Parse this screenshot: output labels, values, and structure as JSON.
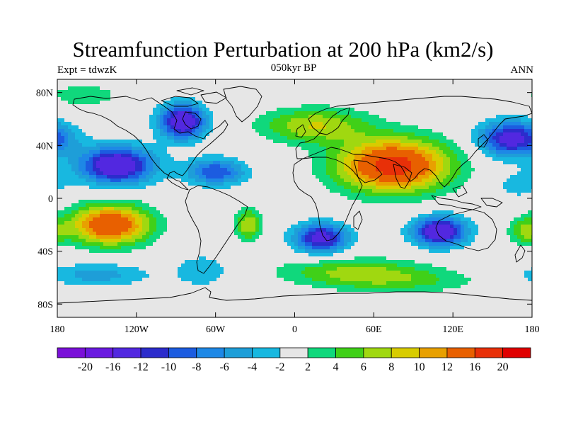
{
  "title": "Streamfunction Perturbation at 200 hPa (km2/s)",
  "subtitle_left": "Expt = tdwzK",
  "subtitle_center": "050kyr BP",
  "subtitle_right": "ANN",
  "map": {
    "projection": "cylindrical equidistant",
    "lon_range": [
      -180,
      180
    ],
    "lat_range": [
      -90,
      90
    ],
    "lon_ticks": [
      "180",
      "120W",
      "60W",
      "0",
      "60E",
      "120E",
      "180"
    ],
    "lat_ticks": [
      "80N",
      "40N",
      "0",
      "40S",
      "80S"
    ],
    "lat_tick_values": [
      80,
      40,
      0,
      -40,
      -80
    ],
    "lon_tick_values": [
      -180,
      -120,
      -60,
      0,
      60,
      120,
      180
    ],
    "coastlines": true,
    "zero_band_color": "#e6e6e6"
  },
  "colorbar": {
    "labels": [
      "-20",
      "-16",
      "-12",
      "-10",
      "-8",
      "-6",
      "-4",
      "-2",
      "2",
      "4",
      "6",
      "8",
      "10",
      "12",
      "16",
      "20"
    ],
    "colors": [
      "#7a10d8",
      "#6a1ae0",
      "#5228e0",
      "#2c2ccc",
      "#1c5ce0",
      "#1e88e6",
      "#1e9ed8",
      "#18b8e0",
      "#e6e6e6",
      "#10d87c",
      "#40d018",
      "#a0d810",
      "#d8cc00",
      "#e8a000",
      "#e86000",
      "#e83008",
      "#e00000"
    ]
  },
  "centers": [
    {
      "lon": -135,
      "lat": 25,
      "value": -16,
      "slon": 28,
      "slat": 14
    },
    {
      "lon": -85,
      "lat": 58,
      "value": -16,
      "slon": 17,
      "slat": 13
    },
    {
      "lon": -60,
      "lat": 20,
      "value": -10,
      "slon": 22,
      "slat": 10
    },
    {
      "lon": 165,
      "lat": 45,
      "value": -14,
      "slon": 25,
      "slat": 13
    },
    {
      "lon": -140,
      "lat": -20,
      "value": 16,
      "slon": 30,
      "slat": 15
    },
    {
      "lon": 75,
      "lat": 25,
      "value": 18,
      "slon": 42,
      "slat": 20
    },
    {
      "lon": 15,
      "lat": 55,
      "value": 8,
      "slon": 40,
      "slat": 13
    },
    {
      "lon": 20,
      "lat": -30,
      "value": -14,
      "slon": 20,
      "slat": 11
    },
    {
      "lon": 110,
      "lat": -25,
      "value": -16,
      "slon": 20,
      "slat": 11
    },
    {
      "lon": -35,
      "lat": -20,
      "value": 8,
      "slon": 10,
      "slat": 12
    },
    {
      "lon": 45,
      "lat": -55,
      "value": 6,
      "slon": 55,
      "slat": 10
    },
    {
      "lon": 80,
      "lat": -63,
      "value": 4,
      "slon": 60,
      "slat": 9
    },
    {
      "lon": -150,
      "lat": -58,
      "value": -5,
      "slon": 40,
      "slat": 9
    },
    {
      "lon": -70,
      "lat": -55,
      "value": -4,
      "slon": 20,
      "slat": 12
    },
    {
      "lon": -160,
      "lat": 78,
      "value": 4,
      "slon": 25,
      "slat": 8
    },
    {
      "lon": 175,
      "lat": -25,
      "value": 6,
      "slon": 12,
      "slat": 10
    },
    {
      "lon": 170,
      "lat": 10,
      "value": -3,
      "slon": 20,
      "slat": 12
    }
  ],
  "levels": [
    -20,
    -16,
    -12,
    -10,
    -8,
    -6,
    -4,
    -2,
    2,
    4,
    6,
    8,
    10,
    12,
    16,
    20
  ]
}
